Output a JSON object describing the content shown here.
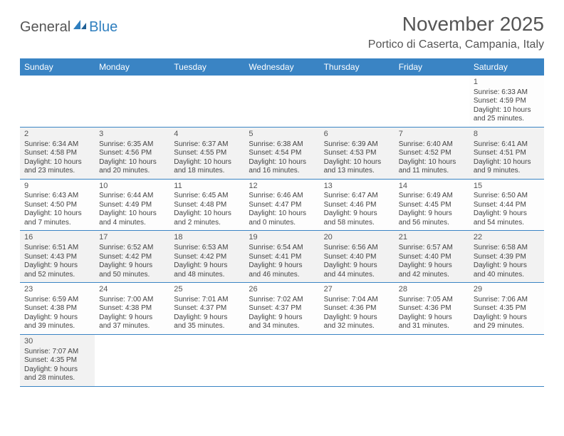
{
  "brand": {
    "part1": "General",
    "part2": "Blue"
  },
  "title": "November 2025",
  "location": "Portico di Caserta, Campania, Italy",
  "colors": {
    "header_bg": "#3a84c4",
    "header_text": "#ffffff",
    "border": "#3a84c4",
    "shaded_bg": "#f2f2f2",
    "text": "#444444"
  },
  "dayHeaders": [
    "Sunday",
    "Monday",
    "Tuesday",
    "Wednesday",
    "Thursday",
    "Friday",
    "Saturday"
  ],
  "weeks": [
    [
      null,
      null,
      null,
      null,
      null,
      null,
      {
        "n": "1",
        "sr": "6:33 AM",
        "ss": "4:59 PM",
        "dl": "10 hours and 25 minutes."
      }
    ],
    [
      {
        "n": "2",
        "sr": "6:34 AM",
        "ss": "4:58 PM",
        "dl": "10 hours and 23 minutes."
      },
      {
        "n": "3",
        "sr": "6:35 AM",
        "ss": "4:56 PM",
        "dl": "10 hours and 20 minutes."
      },
      {
        "n": "4",
        "sr": "6:37 AM",
        "ss": "4:55 PM",
        "dl": "10 hours and 18 minutes."
      },
      {
        "n": "5",
        "sr": "6:38 AM",
        "ss": "4:54 PM",
        "dl": "10 hours and 16 minutes."
      },
      {
        "n": "6",
        "sr": "6:39 AM",
        "ss": "4:53 PM",
        "dl": "10 hours and 13 minutes."
      },
      {
        "n": "7",
        "sr": "6:40 AM",
        "ss": "4:52 PM",
        "dl": "10 hours and 11 minutes."
      },
      {
        "n": "8",
        "sr": "6:41 AM",
        "ss": "4:51 PM",
        "dl": "10 hours and 9 minutes."
      }
    ],
    [
      {
        "n": "9",
        "sr": "6:43 AM",
        "ss": "4:50 PM",
        "dl": "10 hours and 7 minutes."
      },
      {
        "n": "10",
        "sr": "6:44 AM",
        "ss": "4:49 PM",
        "dl": "10 hours and 4 minutes."
      },
      {
        "n": "11",
        "sr": "6:45 AM",
        "ss": "4:48 PM",
        "dl": "10 hours and 2 minutes."
      },
      {
        "n": "12",
        "sr": "6:46 AM",
        "ss": "4:47 PM",
        "dl": "10 hours and 0 minutes."
      },
      {
        "n": "13",
        "sr": "6:47 AM",
        "ss": "4:46 PM",
        "dl": "9 hours and 58 minutes."
      },
      {
        "n": "14",
        "sr": "6:49 AM",
        "ss": "4:45 PM",
        "dl": "9 hours and 56 minutes."
      },
      {
        "n": "15",
        "sr": "6:50 AM",
        "ss": "4:44 PM",
        "dl": "9 hours and 54 minutes."
      }
    ],
    [
      {
        "n": "16",
        "sr": "6:51 AM",
        "ss": "4:43 PM",
        "dl": "9 hours and 52 minutes."
      },
      {
        "n": "17",
        "sr": "6:52 AM",
        "ss": "4:42 PM",
        "dl": "9 hours and 50 minutes."
      },
      {
        "n": "18",
        "sr": "6:53 AM",
        "ss": "4:42 PM",
        "dl": "9 hours and 48 minutes."
      },
      {
        "n": "19",
        "sr": "6:54 AM",
        "ss": "4:41 PM",
        "dl": "9 hours and 46 minutes."
      },
      {
        "n": "20",
        "sr": "6:56 AM",
        "ss": "4:40 PM",
        "dl": "9 hours and 44 minutes."
      },
      {
        "n": "21",
        "sr": "6:57 AM",
        "ss": "4:40 PM",
        "dl": "9 hours and 42 minutes."
      },
      {
        "n": "22",
        "sr": "6:58 AM",
        "ss": "4:39 PM",
        "dl": "9 hours and 40 minutes."
      }
    ],
    [
      {
        "n": "23",
        "sr": "6:59 AM",
        "ss": "4:38 PM",
        "dl": "9 hours and 39 minutes."
      },
      {
        "n": "24",
        "sr": "7:00 AM",
        "ss": "4:38 PM",
        "dl": "9 hours and 37 minutes."
      },
      {
        "n": "25",
        "sr": "7:01 AM",
        "ss": "4:37 PM",
        "dl": "9 hours and 35 minutes."
      },
      {
        "n": "26",
        "sr": "7:02 AM",
        "ss": "4:37 PM",
        "dl": "9 hours and 34 minutes."
      },
      {
        "n": "27",
        "sr": "7:04 AM",
        "ss": "4:36 PM",
        "dl": "9 hours and 32 minutes."
      },
      {
        "n": "28",
        "sr": "7:05 AM",
        "ss": "4:36 PM",
        "dl": "9 hours and 31 minutes."
      },
      {
        "n": "29",
        "sr": "7:06 AM",
        "ss": "4:35 PM",
        "dl": "9 hours and 29 minutes."
      }
    ],
    [
      {
        "n": "30",
        "sr": "7:07 AM",
        "ss": "4:35 PM",
        "dl": "9 hours and 28 minutes."
      },
      null,
      null,
      null,
      null,
      null,
      null
    ]
  ],
  "labels": {
    "sunrise": "Sunrise: ",
    "sunset": "Sunset: ",
    "daylight": "Daylight: "
  }
}
